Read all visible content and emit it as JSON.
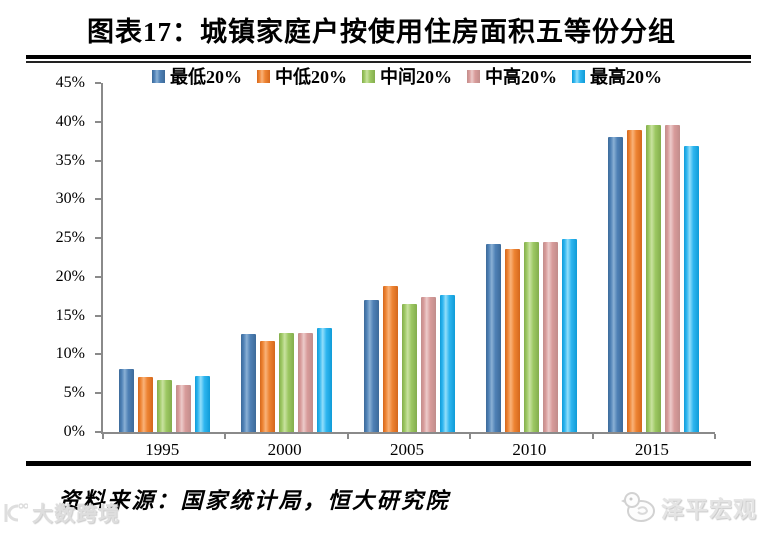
{
  "header": {
    "title": "图表17：城镇家庭户按使用住房面积五等份分组"
  },
  "chart_data": {
    "type": "bar",
    "title": "图表17：城镇家庭户按使用住房面积五等份分组",
    "categories": [
      "1995",
      "2000",
      "2005",
      "2010",
      "2015"
    ],
    "series": [
      {
        "name": "最低20%",
        "values": [
          8.1,
          12.7,
          17.0,
          24.3,
          38.1
        ],
        "colors": {
          "dark": "#3c6a99",
          "mid": "#4f81b6",
          "light": "#8ab0d4"
        }
      },
      {
        "name": "中低20%",
        "values": [
          7.1,
          11.7,
          18.8,
          23.6,
          39.0
        ],
        "colors": {
          "dark": "#d4671c",
          "mid": "#ee8433",
          "light": "#f9b279"
        }
      },
      {
        "name": "中间20%",
        "values": [
          6.7,
          12.8,
          16.5,
          24.5,
          39.6
        ],
        "colors": {
          "dark": "#83ad4c",
          "mid": "#9dc863",
          "light": "#c9e2a0"
        }
      },
      {
        "name": "中高20%",
        "values": [
          6.1,
          12.8,
          17.4,
          24.5,
          39.6
        ],
        "colors": {
          "dark": "#c18d8b",
          "mid": "#d89b9a",
          "light": "#eccbca"
        }
      },
      {
        "name": "最高20%",
        "values": [
          7.2,
          13.4,
          17.7,
          24.9,
          36.9
        ],
        "colors": {
          "dark": "#0f9bd7",
          "mid": "#2fb6f0",
          "light": "#92defa"
        }
      }
    ],
    "xlabel": "",
    "ylabel": "",
    "ylim": [
      0,
      45
    ],
    "ytick_step": 5,
    "ytick_labels": [
      "0%",
      "5%",
      "10%",
      "15%",
      "20%",
      "25%",
      "30%",
      "35%",
      "40%",
      "45%"
    ],
    "legend_position": "top",
    "grid": false,
    "axis_color": "#8a8a8a"
  },
  "footer": {
    "source_text": "资料来源：国家统计局，恒大研究院"
  },
  "watermarks": {
    "bottom_left_text": "大数跨境",
    "bottom_left_icon": "circle-logo-icon",
    "bottom_right_text": "泽平宏观",
    "bottom_right_icon": "bird-icon"
  },
  "colors": {
    "rule": "#000000",
    "watermark": "#dedede"
  }
}
